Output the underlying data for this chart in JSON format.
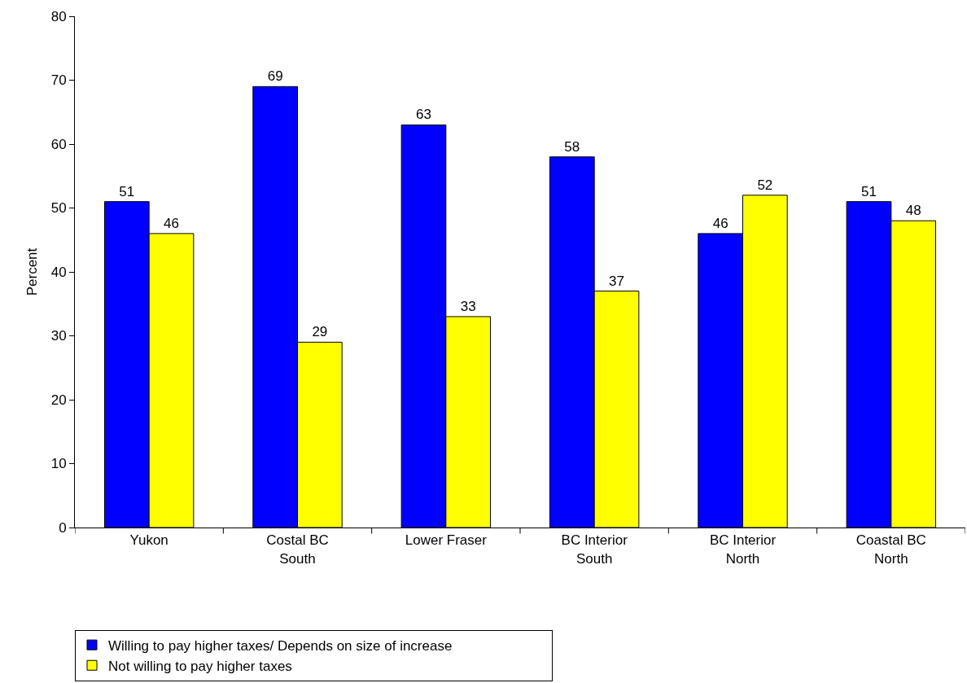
{
  "chart_data": {
    "type": "bar",
    "ylabel": "Percent",
    "categories": [
      "Yukon",
      "Costal BC\nSouth",
      "Lower Fraser",
      "BC Interior\nSouth",
      "BC Interior\nNorth",
      "Coastal BC\nNorth"
    ],
    "series": [
      {
        "name": "Willing to pay higher taxes/ Depends on size of increase",
        "color": "#0000ff",
        "values": [
          51,
          69,
          63,
          58,
          46,
          51
        ]
      },
      {
        "name": "Not willing to pay higher taxes",
        "color": "#ffff00",
        "values": [
          46,
          29,
          33,
          37,
          52,
          48
        ]
      }
    ],
    "ylim": [
      0,
      80
    ],
    "yticks": [
      0,
      10,
      20,
      30,
      40,
      50,
      60,
      70,
      80
    ],
    "grid": false,
    "legend": "bottom",
    "data_labels": true
  }
}
